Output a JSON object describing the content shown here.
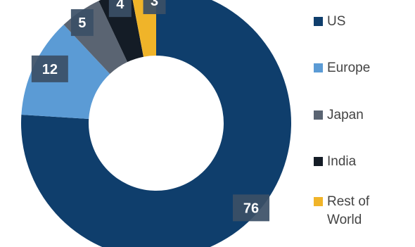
{
  "chart_data": {
    "type": "pie",
    "donut": true,
    "title": "",
    "categories": [
      "US",
      "Europe",
      "Japan",
      "India",
      "Rest of World"
    ],
    "values": [
      76,
      12,
      5,
      4,
      3
    ],
    "data_labels": [
      "76",
      "12",
      "5",
      "4",
      "3"
    ],
    "colors": [
      "#0f3e6c",
      "#5b9bd5",
      "#5a6472",
      "#141c26",
      "#f0b429"
    ],
    "legend_position": "right",
    "start_angle_deg": 0,
    "direction": "clockwise"
  },
  "legend": {
    "items": [
      {
        "label": "US",
        "color": "#0f3e6c"
      },
      {
        "label": "Europe",
        "color": "#5b9bd5"
      },
      {
        "label": "Japan",
        "color": "#5a6472"
      },
      {
        "label": "India",
        "color": "#141c26"
      },
      {
        "label": "Rest of World",
        "color": "#f0b429"
      }
    ]
  }
}
